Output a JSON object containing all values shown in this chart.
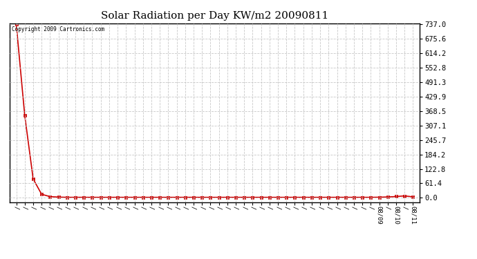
{
  "title": "Solar Radiation per Day KW/m2 20090811",
  "copyright_text": "Copyright 2009 Cartronics.com",
  "y_max": 737.0,
  "y_min": 0.0,
  "y_ticks": [
    0.0,
    61.4,
    122.8,
    184.2,
    245.7,
    307.1,
    368.5,
    429.9,
    491.3,
    552.8,
    614.2,
    675.6,
    737.0
  ],
  "y_tick_labels": [
    "0.0",
    "61.4",
    "122.8",
    "184.2",
    "245.7",
    "307.1",
    "368.5",
    "429.9",
    "491.3",
    "552.8",
    "614.2",
    "675.6",
    "737.0"
  ],
  "line_color": "#cc0000",
  "marker": "s",
  "marker_size": 2.5,
  "background_color": "#ffffff",
  "grid_color": "#c8c8c8",
  "title_fontsize": 11,
  "n_points": 48,
  "peak_value": 737.0,
  "near_zero_value": 2.0,
  "y_data": [
    737.0,
    350.0,
    80.0,
    15.0,
    5.0,
    3.0,
    2.0,
    2.0,
    2.0,
    2.0,
    2.0,
    2.0,
    2.0,
    2.0,
    2.0,
    2.0,
    2.0,
    2.0,
    2.0,
    2.0,
    2.0,
    2.0,
    2.0,
    2.0,
    2.0,
    2.0,
    2.0,
    2.0,
    2.0,
    2.0,
    2.0,
    2.0,
    2.0,
    2.0,
    2.0,
    2.0,
    2.0,
    2.0,
    2.0,
    2.0,
    2.0,
    2.0,
    2.0,
    2.5,
    3.5,
    5.5,
    8.0,
    4.0
  ],
  "date_label_indices": [
    43,
    45,
    47
  ],
  "date_labels_text": [
    "08/09",
    "08/10",
    "08/11"
  ],
  "all_xlabels": [
    "~",
    "~",
    "~",
    "~",
    "~",
    "~",
    "~",
    "~",
    "~",
    "~",
    "~",
    "~",
    "~",
    "~",
    "~",
    "~",
    "~",
    "~",
    "~",
    "~",
    "~",
    "~",
    "~",
    "~",
    "~",
    "~",
    "~",
    "~",
    "~",
    "~",
    "~",
    "~",
    "~",
    "~",
    "~",
    "~",
    "~",
    "~",
    "~",
    "~",
    "~",
    "~",
    "~",
    "08/09",
    "~",
    "08/10",
    "~",
    "08/11"
  ]
}
